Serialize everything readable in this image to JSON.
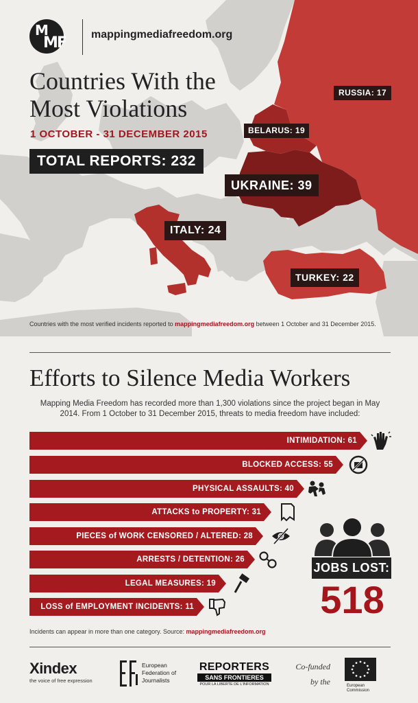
{
  "header": {
    "logo_text": "MMF",
    "site_url": "mappingmediafreedom.org"
  },
  "map_section": {
    "title": "Countries With the Most Violations",
    "date_range": "1 OCTOBER - 31 DECEMBER 2015",
    "total_reports": "TOTAL REPORTS: 232",
    "countries": {
      "russia": "RUSSIA: 17",
      "belarus": "BELARUS: 19",
      "ukraine": "UKRAINE: 39",
      "italy": "ITALY: 24",
      "turkey": "TURKEY: 22"
    },
    "caption_before": "Countries with the most verified incidents reported to ",
    "caption_link": "mappingmediafreedom.org",
    "caption_after": " between 1 October and 31 December 2015.",
    "colors": {
      "highlight": "#c23b36",
      "dark_highlight": "#8a1e1c",
      "land": "#d1d0cd",
      "sea": "#f1efeb"
    }
  },
  "efforts_section": {
    "title": "Efforts to Silence Media Workers",
    "intro": "Mapping Media Freedom has recorded more than 1,300 violations since the project began in May 2014. From 1 October to 31 December 2015, threats to media freedom have included:",
    "bars": [
      {
        "label": "INTIMIDATION: 61",
        "value": 61,
        "icon": "hand-icon"
      },
      {
        "label": "BLOCKED ACCESS: 55",
        "value": 55,
        "icon": "blocked-camera-icon"
      },
      {
        "label": "PHYSICAL ASSAULTS: 40",
        "value": 40,
        "icon": "assault-icon"
      },
      {
        "label": "ATTACKS to PROPERTY: 31",
        "value": 31,
        "icon": "torn-document-icon"
      },
      {
        "label": "PIECES of WORK CENSORED / ALTERED: 28",
        "value": 28,
        "icon": "crossed-eye-icon"
      },
      {
        "label": "ARRESTS / DETENTION: 26",
        "value": 26,
        "icon": "handcuffs-icon"
      },
      {
        "label": "LEGAL MEASURES: 19",
        "value": 19,
        "icon": "gavel-icon"
      },
      {
        "label": "LOSS of EMPLOYMENT INCIDENTS: 11",
        "value": 11,
        "icon": "thumbs-down-icon"
      }
    ],
    "jobs_lost_label": "JOBS LOST:",
    "jobs_lost_value": "518",
    "bar_color": "#a51a1f"
  },
  "footnote": {
    "before": "Incidents can appear in more than one category. Source: ",
    "link": "mappingmediafreedom.org"
  },
  "logos": {
    "index_name": "index",
    "index_tagline": "the voice of free expression",
    "efj_text": "European Federation of Journalists",
    "rsf_line1": "REPORTERS",
    "rsf_line2": "SANS FRONTIERES",
    "rsf_line3": "POUR LA LIBERTE DE L'INFORMATION",
    "cofunded_line1": "Co-funded",
    "cofunded_line2": "by the",
    "eu_text": "European Commission"
  }
}
